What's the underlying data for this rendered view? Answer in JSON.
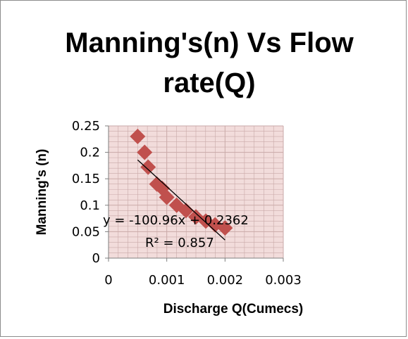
{
  "chart_data": {
    "type": "scatter",
    "title_line1": "Manning's(n) Vs Flow",
    "title_line2": "rate(Q)",
    "xlabel": "Discharge Q(Cumecs)",
    "ylabel": "Manning's (n)",
    "xlim": [
      0,
      0.003
    ],
    "ylim": [
      0,
      0.25
    ],
    "x_ticks": [
      "0",
      "0.001",
      "0.002",
      "0.003"
    ],
    "y_ticks": [
      "0",
      "0.05",
      "0.1",
      "0.15",
      "0.2",
      "0.25"
    ],
    "grid": true,
    "marker_color": "#c0504d",
    "trendline_color": "#000000",
    "plot_background": "#f2dcdb",
    "grid_color": "#c9a9a8",
    "series": [
      {
        "x": [
          0.0005,
          0.00062,
          0.00068,
          0.00083,
          0.00092,
          0.001,
          0.00117,
          0.00133,
          0.0015,
          0.00167,
          0.00183,
          0.002
        ],
        "y": [
          0.23,
          0.2,
          0.172,
          0.14,
          0.132,
          0.115,
          0.1,
          0.09,
          0.078,
          0.07,
          0.063,
          0.057
        ]
      }
    ],
    "trendline": {
      "slope": -100.96,
      "intercept": 0.2362,
      "x_range": [
        0.0005,
        0.002
      ],
      "equation": "y = -100.96x + 0.2362",
      "r_squared": "R² = 0.857"
    }
  }
}
